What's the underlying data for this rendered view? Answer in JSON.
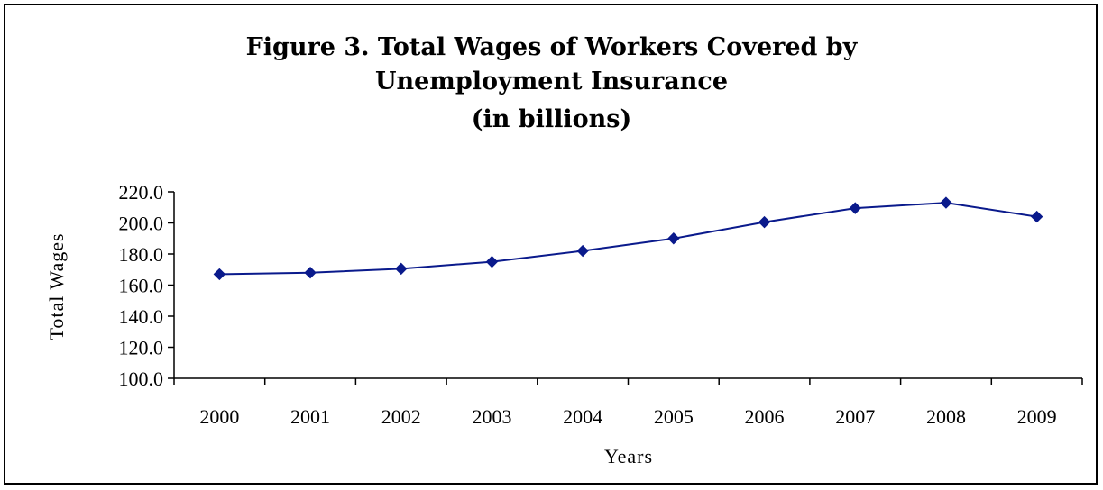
{
  "chart_data": {
    "type": "line",
    "title_lines": [
      "Figure 3.  Total Wages of Workers Covered by",
      "Unemployment Insurance",
      "(in billions)"
    ],
    "xlabel": "Years",
    "ylabel": "Total Wages",
    "categories": [
      "2000",
      "2001",
      "2002",
      "2003",
      "2004",
      "2005",
      "2006",
      "2007",
      "2008",
      "2009"
    ],
    "series": [
      {
        "values": [
          167.0,
          168.0,
          170.5,
          175.0,
          182.0,
          190.0,
          200.5,
          209.5,
          213.0,
          204.0
        ],
        "color": "#0a1a8c",
        "marker": "diamond"
      }
    ],
    "yticks": [
      "100.0",
      "120.0",
      "140.0",
      "160.0",
      "180.0",
      "200.0",
      "220.0"
    ],
    "ylim": [
      100,
      220
    ],
    "grid": false,
    "legend": "none"
  }
}
